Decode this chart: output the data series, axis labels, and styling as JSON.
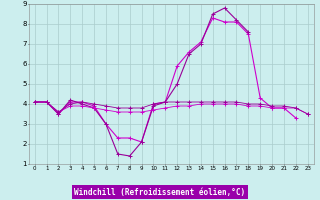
{
  "xlabel": "Windchill (Refroidissement éolien,°C)",
  "background_color": "#cceeff",
  "plot_bg_color": "#cceeee",
  "grid_color": "#aacccc",
  "xlabel_bg": "#9900aa",
  "xlabel_color": "#ffffff",
  "line_color1": "#cc00cc",
  "line_color2": "#990099",
  "xlim": [
    -0.5,
    23.5
  ],
  "ylim": [
    1,
    9
  ],
  "xticks": [
    0,
    1,
    2,
    3,
    4,
    5,
    6,
    7,
    8,
    9,
    10,
    11,
    12,
    13,
    14,
    15,
    16,
    17,
    18,
    19,
    20,
    21,
    22,
    23
  ],
  "yticks": [
    1,
    2,
    3,
    4,
    5,
    6,
    7,
    8,
    9
  ],
  "series": [
    {
      "x": [
        0,
        1,
        2,
        3,
        4,
        5,
        6,
        7,
        8,
        9,
        10,
        11,
        12,
        13,
        14,
        15,
        16,
        17,
        18,
        19,
        20,
        21,
        22
      ],
      "y": [
        4.1,
        4.1,
        3.5,
        4.1,
        4.1,
        3.9,
        3.0,
        2.3,
        2.3,
        2.1,
        4.0,
        4.1,
        5.9,
        6.6,
        7.1,
        8.3,
        8.1,
        8.1,
        7.5,
        4.3,
        3.8,
        3.8,
        3.3
      ],
      "color": "#cc00cc",
      "lw": 0.8
    },
    {
      "x": [
        0,
        1,
        2,
        3,
        4,
        5,
        6,
        7,
        8,
        9,
        10,
        11,
        12,
        13,
        14,
        15,
        16,
        17,
        18
      ],
      "y": [
        4.1,
        4.1,
        3.5,
        4.2,
        4.0,
        3.8,
        3.0,
        1.5,
        1.4,
        2.1,
        3.9,
        4.1,
        5.0,
        6.5,
        7.0,
        8.5,
        8.8,
        8.2,
        7.6
      ],
      "color": "#990099",
      "lw": 0.8
    },
    {
      "x": [
        0,
        1,
        2,
        3,
        4,
        5,
        6,
        7,
        8,
        9,
        10,
        11,
        12,
        13,
        14,
        15,
        16,
        17,
        18,
        19,
        20,
        21,
        22,
        23
      ],
      "y": [
        4.1,
        4.1,
        3.6,
        3.9,
        3.9,
        3.8,
        3.7,
        3.6,
        3.6,
        3.6,
        3.7,
        3.8,
        3.9,
        3.9,
        4.0,
        4.0,
        4.0,
        4.0,
        3.9,
        3.9,
        3.8,
        3.8,
        3.8,
        3.5
      ],
      "color": "#cc00cc",
      "lw": 0.6
    },
    {
      "x": [
        0,
        1,
        2,
        3,
        4,
        5,
        6,
        7,
        8,
        9,
        10,
        11,
        12,
        13,
        14,
        15,
        16,
        17,
        18,
        19,
        20,
        21,
        22,
        23
      ],
      "y": [
        4.1,
        4.1,
        3.6,
        4.0,
        4.1,
        4.0,
        3.9,
        3.8,
        3.8,
        3.8,
        4.0,
        4.1,
        4.1,
        4.1,
        4.1,
        4.1,
        4.1,
        4.1,
        4.0,
        4.0,
        3.9,
        3.9,
        3.8,
        3.5
      ],
      "color": "#990099",
      "lw": 0.6
    }
  ]
}
